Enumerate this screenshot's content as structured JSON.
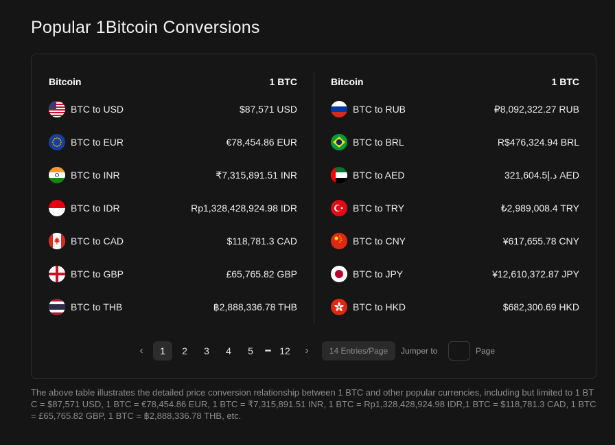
{
  "title": "Popular 1Bitcoin Conversions",
  "left": {
    "header": {
      "name": "Bitcoin",
      "unit": "1 BTC"
    },
    "rows": [
      {
        "pair": "BTC to USD",
        "value": "$87,571 USD",
        "flag": "us-flag-icon"
      },
      {
        "pair": "BTC to EUR",
        "value": "€78,454.86 EUR",
        "flag": "eu-flag-icon"
      },
      {
        "pair": "BTC to INR",
        "value": "₹7,315,891.51 INR",
        "flag": "in-flag-icon"
      },
      {
        "pair": "BTC to IDR",
        "value": "Rp1,328,428,924.98 IDR",
        "flag": "id-flag-icon"
      },
      {
        "pair": "BTC to CAD",
        "value": "$118,781.3 CAD",
        "flag": "ca-flag-icon"
      },
      {
        "pair": "BTC to GBP",
        "value": "£65,765.82 GBP",
        "flag": "gb-flag-icon"
      },
      {
        "pair": "BTC to THB",
        "value": "฿2,888,336.78 THB",
        "flag": "th-flag-icon"
      }
    ]
  },
  "right": {
    "header": {
      "name": "Bitcoin",
      "unit": "1 BTC"
    },
    "rows": [
      {
        "pair": "BTC to RUB",
        "value": "₽8,092,322.27 RUB",
        "flag": "ru-flag-icon"
      },
      {
        "pair": "BTC to BRL",
        "value": "R$476,324.94 BRL",
        "flag": "br-flag-icon"
      },
      {
        "pair": "BTC to AED",
        "value": "د.إ321,604.5 AED",
        "flag": "ae-flag-icon"
      },
      {
        "pair": "BTC to TRY",
        "value": "₺2,989,008.4 TRY",
        "flag": "tr-flag-icon"
      },
      {
        "pair": "BTC to CNY",
        "value": "¥617,655.78 CNY",
        "flag": "cn-flag-icon"
      },
      {
        "pair": "BTC to JPY",
        "value": "¥12,610,372.87 JPY",
        "flag": "jp-flag-icon"
      },
      {
        "pair": "BTC to HKD",
        "value": "$682,300.69 HKD",
        "flag": "hk-flag-icon"
      }
    ]
  },
  "pagination": {
    "pages": [
      "1",
      "2",
      "3",
      "4",
      "5"
    ],
    "ellipsis": "•••",
    "last_page": "12",
    "active_page": "1",
    "prev_icon": "chevron-left-icon",
    "next_icon": "chevron-right-icon",
    "page_size": "14 Entries/Page",
    "jumper_label": "Jumper to",
    "jumper_value": "",
    "page_label": "Page"
  },
  "description": "The above table illustrates the detailed price conversion relationship between 1 BTC and other popular currencies, including but limited to 1 BTC = $87,571 USD, 1 BTC = €78,454.86 EUR, 1 BTC = ₹7,315,891.51 INR, 1 BTC = Rp1,328,428,924.98 IDR,1 BTC = $118,781.3 CAD, 1 BTC = £65,765.82 GBP, 1 BTC = ฿2,888,336.78 THB, etc.",
  "colors": {
    "background": "#151515",
    "card_border": "#2e2e2e",
    "text": "#ececec",
    "muted": "#8c8c8c",
    "active_page_bg": "#2c2c2c"
  }
}
